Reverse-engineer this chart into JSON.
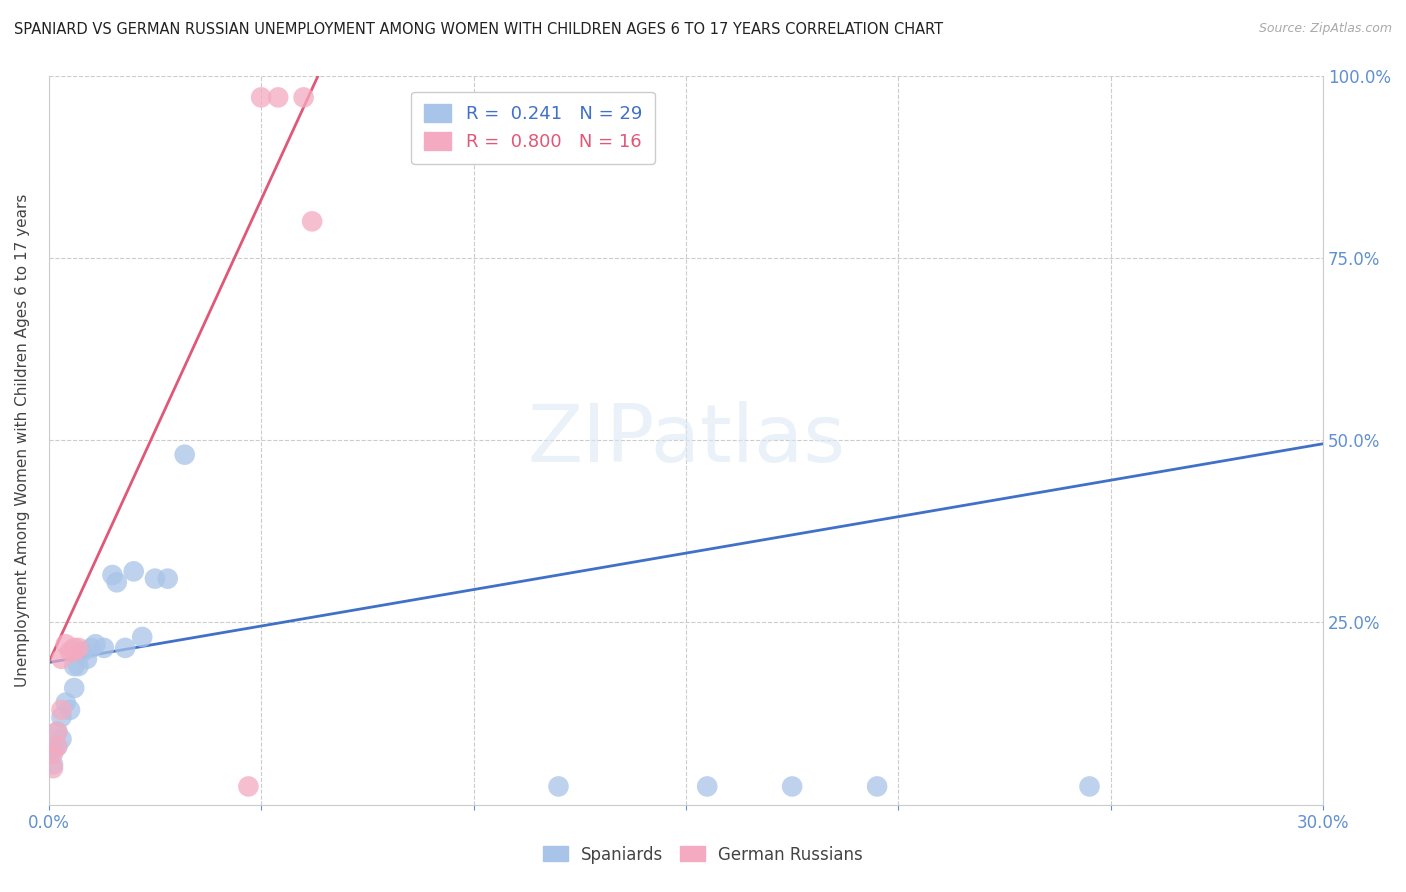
{
  "title": "SPANIARD VS GERMAN RUSSIAN UNEMPLOYMENT AMONG WOMEN WITH CHILDREN AGES 6 TO 17 YEARS CORRELATION CHART",
  "source": "Source: ZipAtlas.com",
  "ylabel": "Unemployment Among Women with Children Ages 6 to 17 years",
  "xlim": [
    0.0,
    0.3
  ],
  "ylim": [
    0.0,
    1.0
  ],
  "spaniards_x": [
    0.001,
    0.001,
    0.002,
    0.002,
    0.003,
    0.003,
    0.004,
    0.005,
    0.006,
    0.006,
    0.007,
    0.008,
    0.009,
    0.01,
    0.011,
    0.013,
    0.015,
    0.016,
    0.018,
    0.02,
    0.022,
    0.025,
    0.028,
    0.032,
    0.12,
    0.155,
    0.175,
    0.195,
    0.245
  ],
  "spaniards_y": [
    0.055,
    0.075,
    0.08,
    0.1,
    0.09,
    0.12,
    0.14,
    0.13,
    0.16,
    0.19,
    0.19,
    0.21,
    0.2,
    0.215,
    0.22,
    0.215,
    0.315,
    0.305,
    0.215,
    0.32,
    0.23,
    0.31,
    0.31,
    0.48,
    0.025,
    0.025,
    0.025,
    0.025,
    0.025
  ],
  "german_russians_x": [
    0.001,
    0.001,
    0.002,
    0.002,
    0.003,
    0.003,
    0.004,
    0.005,
    0.006,
    0.006,
    0.007,
    0.047,
    0.05,
    0.054,
    0.06,
    0.062
  ],
  "german_russians_y": [
    0.05,
    0.07,
    0.08,
    0.1,
    0.13,
    0.2,
    0.22,
    0.21,
    0.21,
    0.215,
    0.215,
    0.025,
    0.97,
    0.97,
    0.97,
    0.8
  ],
  "spaniard_R": 0.241,
  "spaniard_N": 29,
  "german_R": 0.8,
  "german_N": 16,
  "spaniard_color": "#a8c4e8",
  "german_color": "#f4aac0",
  "spaniard_line_color": "#4070c8",
  "german_line_color": "#e05878",
  "watermark_text": "ZIPatlas",
  "background_color": "#ffffff",
  "grid_color": "#cccccc",
  "tick_label_color": "#6090d0",
  "blue_line_x0": 0.0,
  "blue_line_y0": 0.195,
  "blue_line_x1": 0.3,
  "blue_line_y1": 0.495,
  "pink_line_x0": 0.0,
  "pink_line_y0": 0.195,
  "pink_line_x1": 0.065,
  "pink_line_y1": 1.02
}
